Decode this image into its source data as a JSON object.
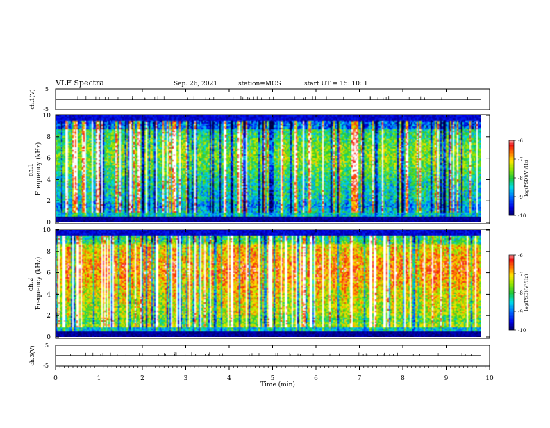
{
  "header": {
    "title": "VLF Spectra",
    "date": "Sep. 26, 2021",
    "station": "station=MOS",
    "start_ut": "start  UT =   15: 10: 1"
  },
  "chart_data": [
    {
      "type": "line",
      "panel": "ch1-waveform",
      "ylabel": "ch.1(V)",
      "ylim": [
        -5,
        5
      ],
      "yticks": [
        "5",
        "-5"
      ],
      "x": [
        0,
        10
      ],
      "values": [
        0,
        0
      ],
      "colors": {
        "line": "#000000"
      }
    },
    {
      "type": "heatmap",
      "panel": "ch1-spectrogram",
      "ylabel": "ch.1\nFrequency (kHz)",
      "ylim": [
        0,
        10
      ],
      "yticks": [
        "0",
        "2",
        "4",
        "6",
        "8",
        "10"
      ],
      "xlim": [
        0,
        9.8
      ],
      "colorbar": {
        "label": "log(PSD)(V²/Hz)",
        "ticks": [
          "-6",
          "-7",
          "-8",
          "-9",
          "-10"
        ],
        "range": [
          -10,
          -6
        ]
      },
      "seed": 17,
      "base_level": 0.38,
      "band_kHz": [
        0.9,
        9.6
      ]
    },
    {
      "type": "heatmap",
      "panel": "ch2-spectrogram",
      "ylabel": "ch.2\nFrequency (kHz)",
      "ylim": [
        0,
        10
      ],
      "yticks": [
        "0",
        "2",
        "4",
        "6",
        "8",
        "10"
      ],
      "xlim": [
        0,
        9.8
      ],
      "colorbar": {
        "label": "log(PSD)(V²/Hz)",
        "ticks": [
          "-6",
          "-7",
          "-8",
          "-9",
          "-10"
        ],
        "range": [
          -10,
          -6
        ]
      },
      "seed": 53,
      "base_level": 0.62,
      "band_kHz": [
        0.9,
        9.6
      ]
    },
    {
      "type": "line",
      "panel": "ch3-waveform",
      "ylabel": "ch.3(V)",
      "ylim": [
        -5,
        5
      ],
      "yticks": [
        "5",
        "-5"
      ],
      "x": [
        0,
        10
      ],
      "values": [
        0,
        0
      ],
      "colors": {
        "line": "#000000"
      }
    }
  ],
  "xaxis": {
    "label": "Time (min)",
    "ticks": [
      "0",
      "1",
      "2",
      "3",
      "4",
      "5",
      "6",
      "7",
      "8",
      "9",
      "10"
    ],
    "range": [
      0,
      10
    ]
  }
}
